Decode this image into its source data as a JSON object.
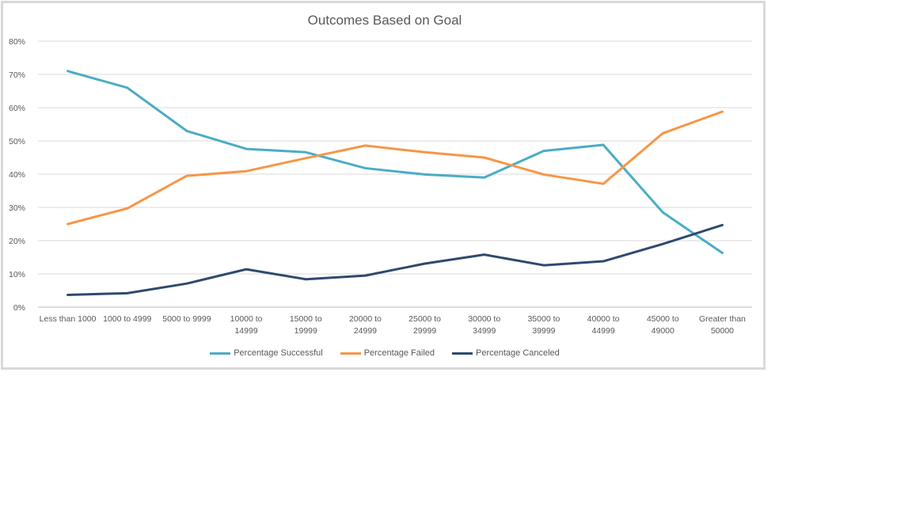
{
  "chart_data": {
    "type": "line",
    "title": "Outcomes Based on Goal",
    "xlabel": "",
    "ylabel": "",
    "categories": [
      "Less than 1000",
      "1000 to 4999",
      "5000 to 9999",
      "10000 to 14999",
      "15000 to 19999",
      "20000 to 24999",
      "25000 to 29999",
      "30000 to 34999",
      "35000 to 39999",
      "40000 to 44999",
      "45000 to 49000",
      "Greater than 50000"
    ],
    "category_lines": [
      [
        "Less than 1000"
      ],
      [
        "1000 to 4999"
      ],
      [
        "5000 to 9999"
      ],
      [
        "10000 to",
        "14999"
      ],
      [
        "15000 to",
        "19999"
      ],
      [
        "20000 to",
        "24999"
      ],
      [
        "25000 to",
        "29999"
      ],
      [
        "30000 to",
        "34999"
      ],
      [
        "35000 to",
        "39999"
      ],
      [
        "40000 to",
        "44999"
      ],
      [
        "45000 to",
        "49000"
      ],
      [
        "Greater than",
        "50000"
      ]
    ],
    "y_ticks": [
      "0%",
      "10%",
      "20%",
      "30%",
      "40%",
      "50%",
      "60%",
      "70%",
      "80%"
    ],
    "ylim": [
      0,
      80
    ],
    "grid": true,
    "legend_position": "bottom",
    "series": [
      {
        "name": "Percentage Successful",
        "color": "#4bacc6",
        "values": [
          71,
          66,
          53,
          47.6,
          46.6,
          41.8,
          39.9,
          39,
          47,
          48.8,
          28.5,
          16.3
        ]
      },
      {
        "name": "Percentage Failed",
        "color": "#f79646",
        "values": [
          25,
          29.7,
          39.5,
          40.9,
          44.8,
          48.6,
          46.6,
          45,
          39.9,
          37.1,
          52.3,
          58.8
        ]
      },
      {
        "name": "Percentage Canceled",
        "color": "#2e4a6e",
        "values": [
          3.7,
          4.2,
          7.1,
          11.4,
          8.4,
          9.5,
          13.1,
          15.8,
          12.6,
          13.8,
          19,
          24.7
        ]
      }
    ]
  }
}
